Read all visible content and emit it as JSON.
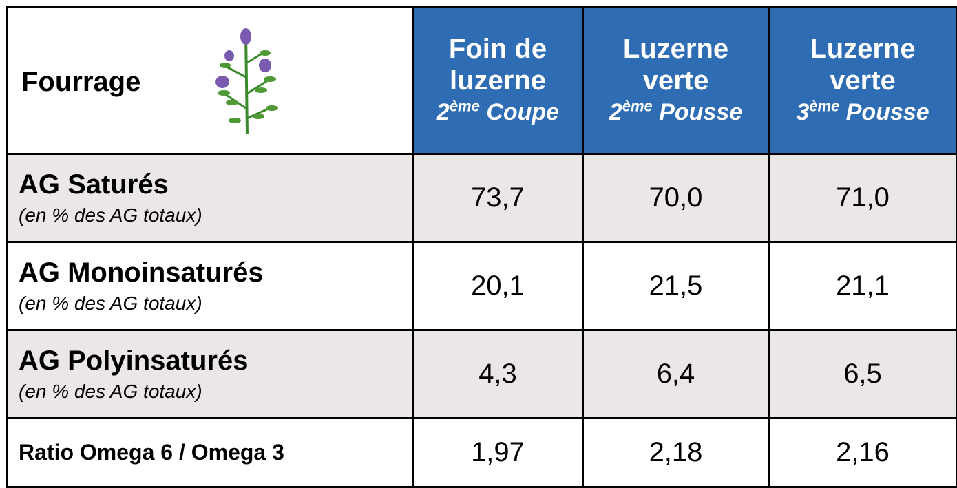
{
  "table": {
    "header": {
      "label": "Fourrage",
      "columns": [
        {
          "line1": "Foin de",
          "line2": "luzerne",
          "ordinal": "2",
          "ordinal_suffix": "ème",
          "stage": "Coupe"
        },
        {
          "line1": "Luzerne",
          "line2": "verte",
          "ordinal": "2",
          "ordinal_suffix": "ème",
          "stage": "Pousse"
        },
        {
          "line1": "Luzerne",
          "line2": "verte",
          "ordinal": "3",
          "ordinal_suffix": "ème",
          "stage": "Pousse"
        }
      ]
    },
    "rows": [
      {
        "label": "AG Saturés",
        "note": "(en % des AG totaux)",
        "values": [
          "73,7",
          "70,0",
          "71,0"
        ]
      },
      {
        "label": "AG Monoinsaturés",
        "note": "(en % des AG totaux)",
        "values": [
          "20,1",
          "21,5",
          "21,1"
        ]
      },
      {
        "label": "AG Polyinsaturés",
        "note": "(en % des AG totaux)",
        "values": [
          "4,3",
          "6,4",
          "6,5"
        ]
      },
      {
        "label": "Ratio Omega 6 / Omega 3",
        "values": [
          "1,97",
          "2,18",
          "2,16"
        ]
      }
    ]
  }
}
